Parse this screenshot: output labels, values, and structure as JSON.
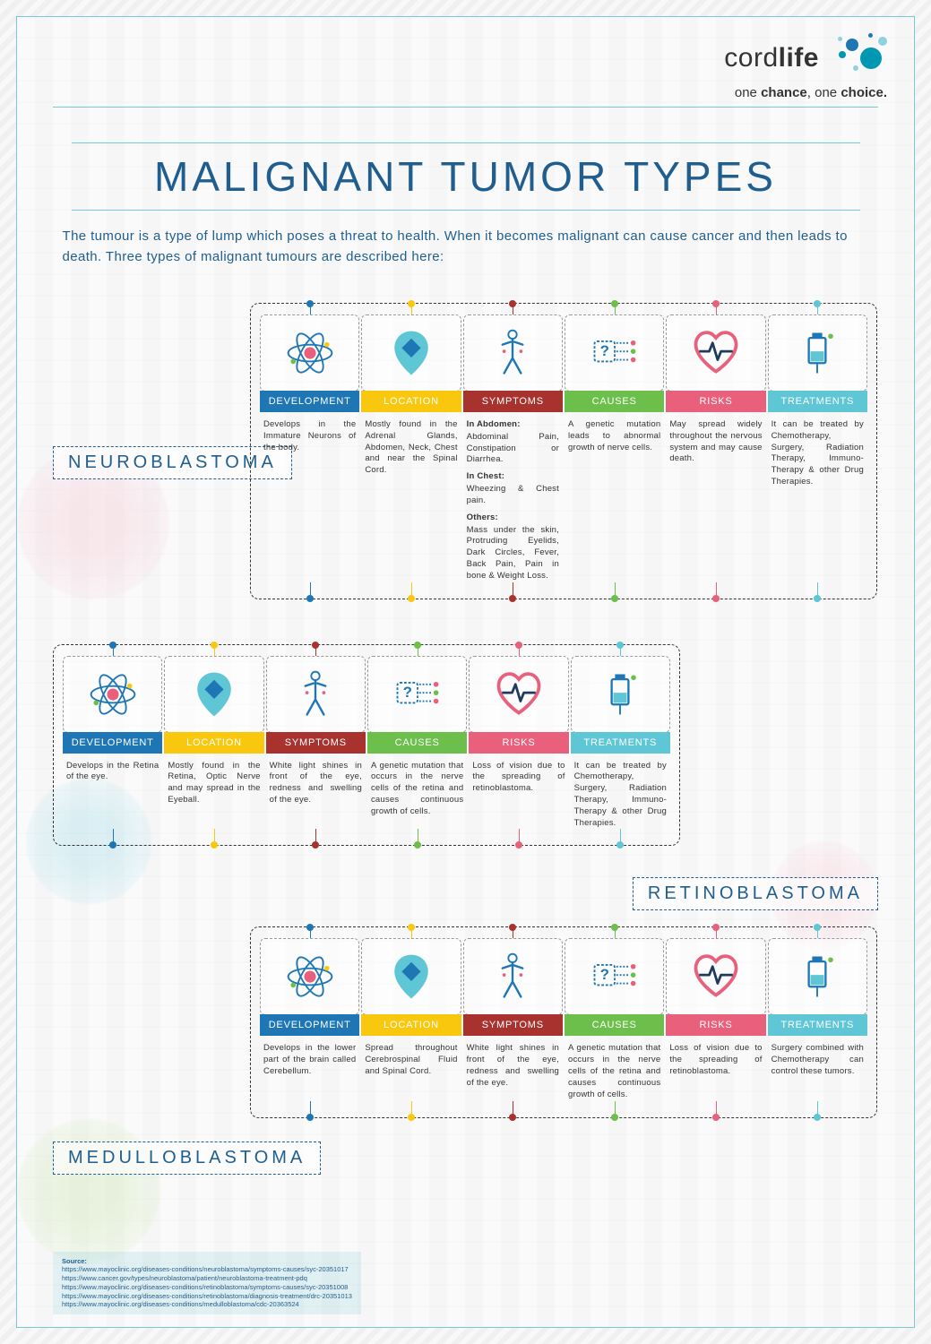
{
  "brand": {
    "name_light": "cord",
    "name_bold": "life",
    "tagline_light1": "one",
    "tagline_bold1": "chance",
    "tagline_sep": ", ",
    "tagline_light2": "one",
    "tagline_bold2": "choice.",
    "dot_colors": {
      "teal": "#0097b2",
      "blue": "#1e77b4",
      "light": "#8ed1df"
    }
  },
  "title": "MALIGNANT TUMOR TYPES",
  "intro": "The tumour is a type of lump which poses a threat to health. When it becomes malignant can cause cancer and then leads to death. Three types of malignant tumours are described here:",
  "categories": [
    {
      "key": "development",
      "label": "DEVELOPMENT",
      "color": "#1e77b4",
      "cls": "c-dev"
    },
    {
      "key": "location",
      "label": "LOCATION",
      "color": "#f9c80e",
      "cls": "c-loc"
    },
    {
      "key": "symptoms",
      "label": "SYMPTOMS",
      "color": "#a8322d",
      "cls": "c-sym"
    },
    {
      "key": "causes",
      "label": "CAUSES",
      "color": "#6cbf4b",
      "cls": "c-cau"
    },
    {
      "key": "risks",
      "label": "RISKS",
      "color": "#e9607c",
      "cls": "c-ris"
    },
    {
      "key": "treatments",
      "label": "TREATMENTS",
      "color": "#5fc6d6",
      "cls": "c-tre"
    }
  ],
  "tumors": [
    {
      "name": "NEUROBLASTOMA",
      "development": "Develops in the Immature Neurons of the body.",
      "location": "Mostly found in the Adrenal Glands, Abdomen, Neck, Chest and near the Spinal Cord.",
      "symptoms_abdomen_h": "In Abdomen:",
      "symptoms_abdomen": "Abdominal Pain, Constipation or Diarrhea.",
      "symptoms_chest_h": "In Chest:",
      "symptoms_chest": "Wheezing & Chest pain.",
      "symptoms_other_h": "Others:",
      "symptoms_other": "Mass under the skin, Protruding Eyelids, Dark Circles, Fever, Back Pain, Pain in bone & Weight Loss.",
      "causes": "A genetic mutation leads to abnormal growth of nerve cells.",
      "risks": "May spread widely throughout the nervous system and may cause death.",
      "treatments": "It can be treated by Chemotherapy, Surgery, Radiation Therapy, Immuno-Therapy & other Drug Therapies."
    },
    {
      "name": "RETINOBLASTOMA",
      "development": "Develops in the Retina of the eye.",
      "location": "Mostly found in the Retina, Optic Nerve and may spread in the Eyeball.",
      "symptoms": "White light shines in front of the eye, redness and swelling of the eye.",
      "causes": "A genetic mutation that occurs in the nerve cells of the retina and causes continuous growth of cells.",
      "risks": "Loss of vision due to the spreading of retinoblastoma.",
      "treatments": "It can be treated by Chemotherapy, Surgery, Radiation Therapy, Immuno-Therapy & other Drug Therapies."
    },
    {
      "name": "MEDULLOBLASTOMA",
      "development": "Develops in the lower part of the brain called Cerebellum.",
      "location": "Spread throughout Cerebrospinal Fluid and Spinal Cord.",
      "symptoms": "White light shines in front of the eye, redness and swelling of the eye.",
      "causes": "A genetic mutation that occurs in the nerve cells of the retina and causes continuous growth of cells.",
      "risks": "Loss of vision due to the spreading of retinoblastoma.",
      "treatments": "Surgery combined with Chemotherapy can control these tumors."
    }
  ],
  "sources": {
    "header": "Source:",
    "urls": [
      "https://www.mayoclinic.org/diseases-conditions/neuroblastoma/symptoms-causes/syc-20351017",
      "https://www.cancer.gov/types/neuroblastoma/patient/neuroblastoma-treatment-pdq",
      "https://www.mayoclinic.org/diseases-conditions/retinoblastoma/symptoms-causes/syc-20351008",
      "https://www.mayoclinic.org/diseases-conditions/retinoblastoma/diagnosis-treatment/drc-20351013",
      "https://www.mayoclinic.org/diseases-conditions/medulloblastoma/cdc-20363524"
    ]
  }
}
